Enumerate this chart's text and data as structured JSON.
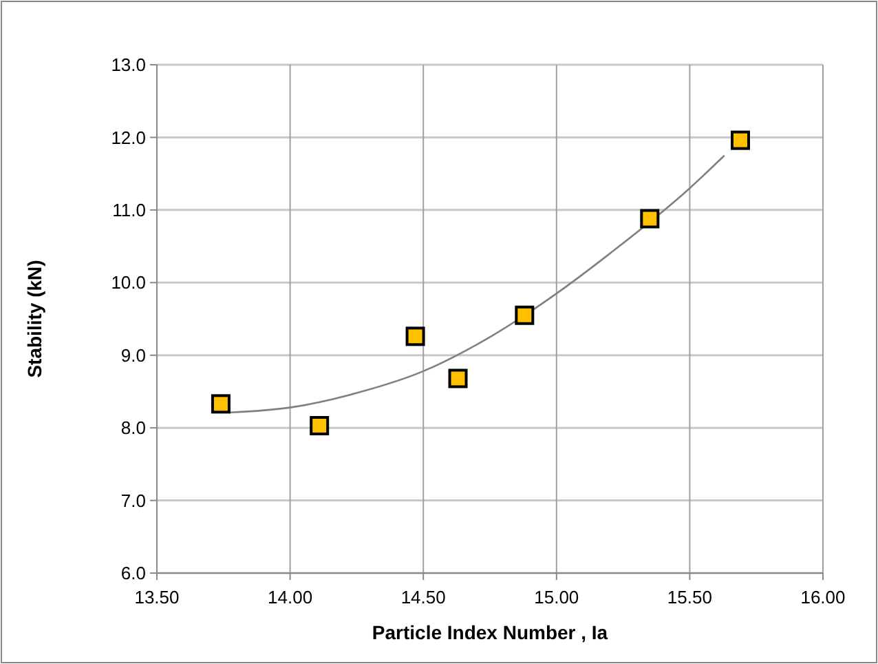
{
  "chart_data": {
    "type": "scatter",
    "xlabel": "Particle Index Number , Ia",
    "ylabel": "Stability (kN)",
    "xlim": [
      13.5,
      16.0
    ],
    "xticks": [
      {
        "value": 13.5,
        "label": "13.50"
      },
      {
        "value": 14,
        "label": "14.00"
      },
      {
        "value": 14.5,
        "label": "14.50"
      },
      {
        "value": 15,
        "label": "15.00"
      },
      {
        "value": 15.5,
        "label": "15.50"
      },
      {
        "value": 16,
        "label": "16.00"
      }
    ],
    "ylim": [
      6,
      13
    ],
    "yticks": [
      {
        "value": 6,
        "label": "6.0"
      },
      {
        "value": 7,
        "label": "7.0"
      },
      {
        "value": 8,
        "label": "8.0"
      },
      {
        "value": 9,
        "label": "9.0"
      },
      {
        "value": 10,
        "label": "10.0"
      },
      {
        "value": 11,
        "label": "11.0"
      },
      {
        "value": 12,
        "label": "12.0"
      },
      {
        "value": 13,
        "label": "13.0"
      }
    ],
    "grid": true,
    "marker": "square",
    "series": [
      {
        "color": "#ffc000",
        "x": [
          13.74,
          14.11,
          14.47,
          14.63,
          14.88,
          15.35,
          15.69
        ],
        "values": [
          8.33,
          8.03,
          9.26,
          8.68,
          9.55,
          10.88,
          11.96
        ]
      },
      {
        "type": "line",
        "color": "#808080",
        "marker": "none",
        "x": [
          13.77,
          14.0,
          14.25,
          14.5,
          14.75,
          15.0,
          15.2,
          15.5,
          15.63
        ],
        "values": [
          8.21,
          8.28,
          8.48,
          8.78,
          9.25,
          9.85,
          10.4,
          11.3,
          11.75
        ]
      }
    ]
  }
}
